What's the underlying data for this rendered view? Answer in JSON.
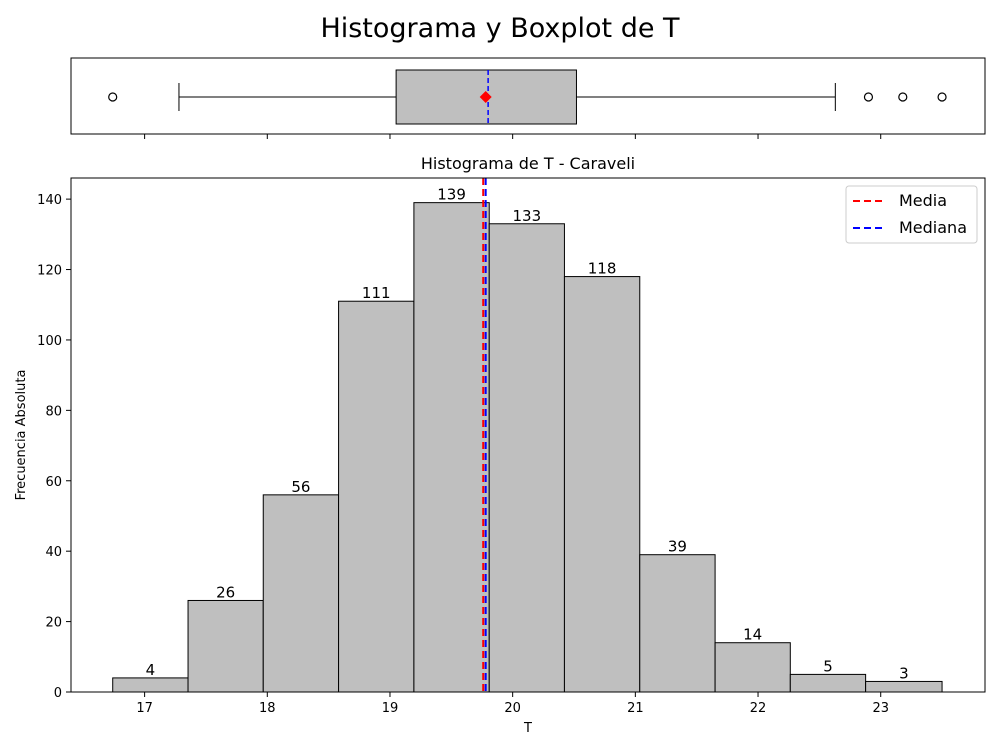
{
  "figure": {
    "title": "Histograma y Boxplot de T"
  },
  "chart_data": [
    {
      "type": "box",
      "orientation": "horizontal",
      "variable": "T",
      "whisker_low": 17.28,
      "q1": 19.05,
      "median": 19.8,
      "mean": 19.78,
      "q3": 20.52,
      "whisker_high": 22.63,
      "outliers": [
        16.74,
        22.9,
        23.18,
        23.5
      ],
      "xlim": [
        16.4,
        23.85
      ],
      "colors": {
        "box": "#bfbfbf",
        "median": "#0000ff",
        "mean": "#ff0000"
      }
    },
    {
      "type": "bar",
      "title": "Histograma de T - Caraveli",
      "xlabel": "T",
      "ylabel": "Frecuencia Absoluta",
      "bin_edges": [
        16.74,
        17.354,
        17.967,
        18.581,
        19.195,
        19.809,
        20.422,
        21.036,
        21.65,
        22.263,
        22.877,
        23.5
      ],
      "values": [
        4,
        26,
        56,
        111,
        139,
        133,
        118,
        39,
        14,
        5,
        3
      ],
      "value_labels": [
        "4",
        "26",
        "56",
        "111",
        "139",
        "133",
        "118",
        "39",
        "14",
        "5",
        "3"
      ],
      "mean": 19.76,
      "median": 19.78,
      "xlim": [
        16.4,
        23.85
      ],
      "ylim": [
        0,
        146
      ],
      "xticks": [
        17,
        18,
        19,
        20,
        21,
        22,
        23
      ],
      "xtick_labels": [
        "17",
        "18",
        "19",
        "20",
        "21",
        "22",
        "23"
      ],
      "yticks": [
        0,
        20,
        40,
        60,
        80,
        100,
        120,
        140
      ],
      "ytick_labels": [
        "0",
        "20",
        "40",
        "60",
        "80",
        "100",
        "120",
        "140"
      ],
      "legend": {
        "position": "upper right",
        "entries": [
          "Media",
          "Mediana"
        ]
      },
      "colors": {
        "bar": "#bfbfbf",
        "edge": "#000000",
        "mean": "#ff0000",
        "median": "#0000ff"
      }
    }
  ]
}
